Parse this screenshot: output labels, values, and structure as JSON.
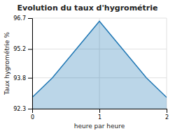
{
  "chart_data": {
    "type": "area",
    "title": "Evolution du taux d'hygrométrie",
    "xlabel": "heure par heure",
    "ylabel": "Taux hygrométrie %",
    "x": [
      0,
      0.3,
      1.0,
      1.7,
      2.0
    ],
    "values": [
      92.85,
      93.8,
      96.55,
      93.8,
      92.85
    ],
    "xlim": [
      0,
      2
    ],
    "ylim": [
      92.3,
      96.7
    ],
    "xticks": [
      0,
      1,
      2
    ],
    "yticks": [
      92.3,
      93.8,
      95.2,
      96.7
    ],
    "grid": true
  }
}
